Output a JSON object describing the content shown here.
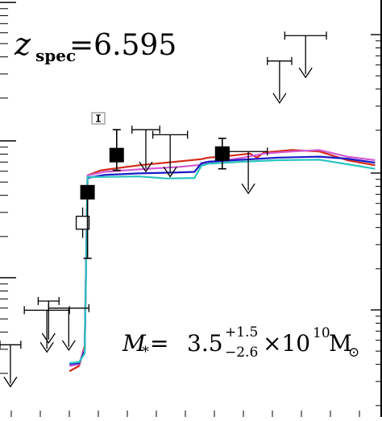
{
  "chart_data": {
    "type": "line",
    "title": "",
    "xlabel": "",
    "ylabel": "",
    "grid": false,
    "annotations": {
      "redshift": {
        "z_italic": "z",
        "subscript": "spec",
        "equals_value": "=6.595"
      },
      "stellar_mass": {
        "symbol": "M",
        "star": "*",
        "equals": "=",
        "value": "3.5",
        "err_plus": "+1.5",
        "err_minus": "−2.6",
        "times_ten": "×10",
        "exponent": "10",
        "unit": "M",
        "sun_symbol": "⊙"
      }
    },
    "colors": {
      "red": "#d42a1a",
      "magenta": "#d25ad2",
      "blue": "#1a1ac8",
      "cyan": "#2ac4c0",
      "black": "#000000"
    },
    "series": [
      {
        "color": "red",
        "points": [
          [
            0.1,
            0.9
          ],
          [
            0.112,
            0.99
          ],
          [
            0.114,
            1.01
          ],
          [
            0.122,
            1.4
          ],
          [
            0.126,
            4.75
          ],
          [
            0.145,
            4.85
          ],
          [
            0.2,
            4.95
          ],
          [
            0.26,
            5.03
          ],
          [
            0.29,
            5.07
          ],
          [
            0.3,
            5.1
          ],
          [
            0.32,
            5.12
          ],
          [
            0.34,
            5.15
          ],
          [
            0.36,
            5.18
          ],
          [
            0.37,
            5.1
          ],
          [
            0.38,
            5.2
          ],
          [
            0.42,
            5.25
          ],
          [
            0.46,
            5.22
          ],
          [
            0.5,
            5.05
          ],
          [
            0.54,
            4.95
          ]
        ]
      },
      {
        "color": "magenta",
        "points": [
          [
            0.1,
            1.0
          ],
          [
            0.114,
            1.04
          ],
          [
            0.122,
            1.35
          ],
          [
            0.126,
            4.75
          ],
          [
            0.15,
            4.82
          ],
          [
            0.2,
            4.87
          ],
          [
            0.26,
            4.92
          ],
          [
            0.29,
            4.96
          ],
          [
            0.3,
            5.0
          ],
          [
            0.35,
            5.1
          ],
          [
            0.38,
            5.18
          ],
          [
            0.42,
            5.22
          ],
          [
            0.46,
            5.25
          ],
          [
            0.5,
            5.12
          ],
          [
            0.54,
            5.05
          ]
        ]
      },
      {
        "color": "blue",
        "points": [
          [
            0.1,
            1.04
          ],
          [
            0.114,
            1.06
          ],
          [
            0.122,
            1.3
          ],
          [
            0.126,
            4.7
          ],
          [
            0.15,
            4.76
          ],
          [
            0.2,
            4.79
          ],
          [
            0.26,
            4.81
          ],
          [
            0.28,
            4.82
          ],
          [
            0.29,
            4.99
          ],
          [
            0.3,
            5.02
          ],
          [
            0.35,
            5.06
          ],
          [
            0.4,
            5.1
          ],
          [
            0.46,
            5.12
          ],
          [
            0.5,
            5.08
          ],
          [
            0.54,
            5.0
          ]
        ]
      },
      {
        "color": "cyan",
        "points": [
          [
            0.1,
            1.06
          ],
          [
            0.114,
            1.08
          ],
          [
            0.122,
            1.25
          ],
          [
            0.126,
            4.72
          ],
          [
            0.15,
            4.72
          ],
          [
            0.2,
            4.73
          ],
          [
            0.24,
            4.69
          ],
          [
            0.28,
            4.7
          ],
          [
            0.29,
            4.94
          ],
          [
            0.3,
            4.98
          ],
          [
            0.35,
            5.02
          ],
          [
            0.4,
            5.05
          ],
          [
            0.46,
            5.06
          ],
          [
            0.5,
            4.97
          ],
          [
            0.54,
            4.88
          ]
        ]
      }
    ],
    "detections": [
      {
        "x": 0.126,
        "y": 4.42,
        "err_plus": 0.1,
        "err_minus": 1.3,
        "filled": true
      },
      {
        "x": 0.168,
        "y": 5.15,
        "err_plus": 0.5,
        "err_minus": 0.3,
        "filled": true
      },
      {
        "x": 0.32,
        "y": 5.18,
        "err_plus": 0.3,
        "err_minus": 0.3,
        "filled": true
      }
    ],
    "open_points": [
      {
        "x": 0.119,
        "y": 3.82,
        "err_plus": 0.3,
        "err_minus": 0.3
      }
    ],
    "upper_limits": [
      {
        "x_lo": 0.07,
        "x_hi": 0.128,
        "y": 2.14
      },
      {
        "x_lo": 0.055,
        "x_hi": 0.085,
        "y": 2.28
      },
      {
        "x_lo": 0.035,
        "x_hi": 0.1,
        "y": 2.1
      },
      {
        "x_lo": 0.0,
        "x_hi": 0.03,
        "y": 1.42
      },
      {
        "x_lo": 0.19,
        "x_hi": 0.23,
        "y": 5.65
      },
      {
        "x_lo": 0.22,
        "x_hi": 0.27,
        "y": 5.55
      },
      {
        "x_lo": 0.33,
        "x_hi": 0.385,
        "y": 5.22
      },
      {
        "x_lo": 0.385,
        "x_hi": 0.42,
        "y": 7.0
      },
      {
        "x_lo": 0.41,
        "x_hi": 0.47,
        "y": 7.5
      }
    ],
    "inset_marker": {
      "x": 0.122,
      "y": 6.1
    },
    "xlim": [
      0.0,
      0.55
    ],
    "ylim": [
      0.0,
      8.2
    ]
  }
}
